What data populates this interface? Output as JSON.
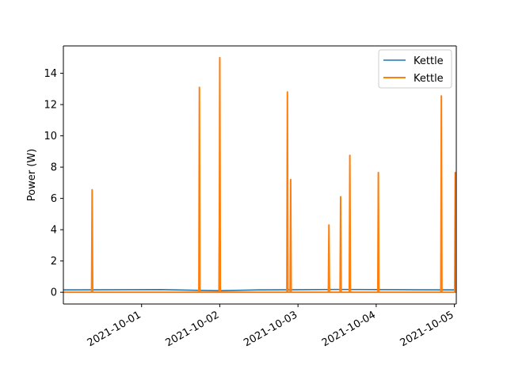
{
  "chart_data": {
    "type": "line",
    "title": "",
    "xlabel": "",
    "ylabel": "Power (W)",
    "x_axis": "date",
    "xlim": [
      "2021-09-30 00:00",
      "2021-10-05 00:35"
    ],
    "ylim": [
      -0.75,
      15.75
    ],
    "x_ticks": [
      "2021-10-01",
      "2021-10-02",
      "2021-10-03",
      "2021-10-04",
      "2021-10-05"
    ],
    "y_ticks": [
      0,
      2,
      4,
      6,
      8,
      10,
      12,
      14
    ],
    "grid": false,
    "legend_position": "top-right",
    "series": [
      {
        "name": "Kettle",
        "color": "#1f77b4",
        "points": [
          [
            "2021-09-30 00:00",
            0.15
          ],
          [
            "2021-10-01 06:00",
            0.17
          ],
          [
            "2021-10-01 18:00",
            0.12
          ],
          [
            "2021-10-01 23:45",
            0.1
          ],
          [
            "2021-10-01 23:50",
            4.0
          ],
          [
            "2021-10-01 23:55",
            0.1
          ],
          [
            "2021-10-02 12:00",
            0.15
          ],
          [
            "2021-10-03 12:00",
            0.18
          ],
          [
            "2021-10-04 12:00",
            0.16
          ],
          [
            "2021-10-05 00:35",
            0.15
          ]
        ]
      },
      {
        "name": "Kettle",
        "color": "#ff7f0e",
        "points": [
          [
            "2021-09-30 00:00",
            0.0
          ],
          [
            "2021-09-30 08:40",
            0.0
          ],
          [
            "2021-09-30 08:50",
            6.55
          ],
          [
            "2021-09-30 09:00",
            0.0
          ],
          [
            "2021-10-01 17:35",
            0.0
          ],
          [
            "2021-10-01 17:45",
            13.1
          ],
          [
            "2021-10-01 17:55",
            0.0
          ],
          [
            "2021-10-01 23:50",
            0.0
          ],
          [
            "2021-10-02 00:00",
            15.0
          ],
          [
            "2021-10-02 00:10",
            0.0
          ],
          [
            "2021-10-02 20:35",
            0.0
          ],
          [
            "2021-10-02 20:45",
            12.8
          ],
          [
            "2021-10-02 20:55",
            0.0
          ],
          [
            "2021-10-02 21:35",
            0.0
          ],
          [
            "2021-10-02 21:45",
            7.2
          ],
          [
            "2021-10-02 21:55",
            0.0
          ],
          [
            "2021-10-03 09:20",
            0.0
          ],
          [
            "2021-10-03 09:30",
            4.3
          ],
          [
            "2021-10-03 09:40",
            0.0
          ],
          [
            "2021-10-03 12:55",
            0.0
          ],
          [
            "2021-10-03 13:05",
            6.1
          ],
          [
            "2021-10-03 13:15",
            0.0
          ],
          [
            "2021-10-03 15:45",
            0.0
          ],
          [
            "2021-10-03 15:55",
            8.75
          ],
          [
            "2021-10-03 16:05",
            0.0
          ],
          [
            "2021-10-04 00:30",
            0.0
          ],
          [
            "2021-10-04 00:40",
            7.65
          ],
          [
            "2021-10-04 00:50",
            0.0
          ],
          [
            "2021-10-04 19:50",
            0.0
          ],
          [
            "2021-10-04 20:00",
            12.55
          ],
          [
            "2021-10-04 20:10",
            0.0
          ],
          [
            "2021-10-05 00:05",
            0.0
          ],
          [
            "2021-10-05 00:15",
            7.65
          ],
          [
            "2021-10-05 00:25",
            0.0
          ],
          [
            "2021-10-05 00:35",
            0.0
          ]
        ]
      }
    ]
  }
}
